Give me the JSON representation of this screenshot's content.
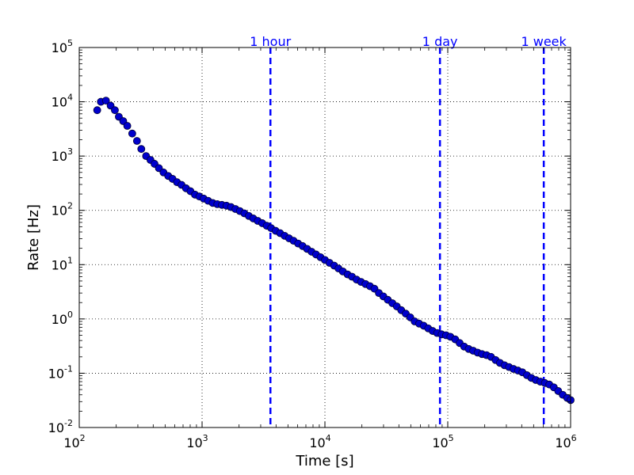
{
  "chart_data": {
    "type": "scatter",
    "title": "",
    "xlabel": "Time [s]",
    "ylabel": "Rate [Hz]",
    "x_scale": "log",
    "y_scale": "log",
    "xlim": [
      100,
      1000000
    ],
    "ylim": [
      0.01,
      100000
    ],
    "grid": true,
    "x_tick_labels": [
      {
        "value": 100,
        "base": "10",
        "exp": "2"
      },
      {
        "value": 1000,
        "base": "10",
        "exp": "3"
      },
      {
        "value": 10000,
        "base": "10",
        "exp": "4"
      },
      {
        "value": 100000,
        "base": "10",
        "exp": "5"
      },
      {
        "value": 1000000,
        "base": "10",
        "exp": "6"
      }
    ],
    "y_tick_labels": [
      {
        "value": 0.01,
        "base": "10",
        "exp": "-2"
      },
      {
        "value": 0.1,
        "base": "10",
        "exp": "-1"
      },
      {
        "value": 1,
        "base": "10",
        "exp": "0"
      },
      {
        "value": 10,
        "base": "10",
        "exp": "1"
      },
      {
        "value": 100,
        "base": "10",
        "exp": "2"
      },
      {
        "value": 1000,
        "base": "10",
        "exp": "3"
      },
      {
        "value": 10000,
        "base": "10",
        "exp": "4"
      },
      {
        "value": 100000,
        "base": "10",
        "exp": "5"
      }
    ],
    "marker_color": "#0000cc",
    "vline_color": "#0000ff",
    "vertical_lines": [
      {
        "x": 3600,
        "label": "1 hour"
      },
      {
        "x": 86400,
        "label": "1 day"
      },
      {
        "x": 604800,
        "label": "1 week"
      }
    ],
    "series": [
      {
        "points": [
          [
            140,
            7000
          ],
          [
            150,
            10000
          ],
          [
            165,
            10500
          ],
          [
            180,
            8500
          ],
          [
            195,
            7000
          ],
          [
            210,
            5300
          ],
          [
            228,
            4400
          ],
          [
            246,
            3600
          ],
          [
            270,
            2600
          ],
          [
            295,
            1900
          ],
          [
            320,
            1350
          ],
          [
            350,
            1000
          ],
          [
            380,
            850
          ],
          [
            410,
            720
          ],
          [
            445,
            600
          ],
          [
            485,
            500
          ],
          [
            530,
            430
          ],
          [
            575,
            380
          ],
          [
            625,
            330
          ],
          [
            680,
            295
          ],
          [
            740,
            255
          ],
          [
            805,
            225
          ],
          [
            875,
            195
          ],
          [
            950,
            180
          ],
          [
            1030,
            165
          ],
          [
            1120,
            150
          ],
          [
            1220,
            137
          ],
          [
            1330,
            130
          ],
          [
            1450,
            126
          ],
          [
            1580,
            122
          ],
          [
            1720,
            115
          ],
          [
            1870,
            106
          ],
          [
            2030,
            97
          ],
          [
            2210,
            88
          ],
          [
            2400,
            79
          ],
          [
            2610,
            71
          ],
          [
            2840,
            64
          ],
          [
            3090,
            58
          ],
          [
            3360,
            52
          ],
          [
            3650,
            47
          ],
          [
            3970,
            42
          ],
          [
            4320,
            38
          ],
          [
            4700,
            34
          ],
          [
            5110,
            30.5
          ],
          [
            5560,
            27.5
          ],
          [
            6050,
            24.5
          ],
          [
            6580,
            22
          ],
          [
            7160,
            19.5
          ],
          [
            7790,
            17.3
          ],
          [
            8470,
            15.4
          ],
          [
            9210,
            13.7
          ],
          [
            10000,
            12.2
          ],
          [
            10900,
            10.8
          ],
          [
            11900,
            9.6
          ],
          [
            12900,
            8.5
          ],
          [
            14000,
            7.5
          ],
          [
            15300,
            6.6
          ],
          [
            16600,
            6.0
          ],
          [
            18100,
            5.3
          ],
          [
            19700,
            4.8
          ],
          [
            21400,
            4.4
          ],
          [
            23300,
            4.0
          ],
          [
            25300,
            3.6
          ],
          [
            27500,
            3.0
          ],
          [
            29900,
            2.6
          ],
          [
            32500,
            2.25
          ],
          [
            35400,
            1.95
          ],
          [
            38500,
            1.7
          ],
          [
            41800,
            1.45
          ],
          [
            45500,
            1.25
          ],
          [
            49500,
            1.07
          ],
          [
            53800,
            0.9
          ],
          [
            58500,
            0.82
          ],
          [
            63700,
            0.75
          ],
          [
            69300,
            0.67
          ],
          [
            75300,
            0.6
          ],
          [
            81900,
            0.55
          ],
          [
            89100,
            0.52
          ],
          [
            96900,
            0.5
          ],
          [
            105000,
            0.47
          ],
          [
            115000,
            0.42
          ],
          [
            125000,
            0.36
          ],
          [
            136000,
            0.31
          ],
          [
            148000,
            0.28
          ],
          [
            161000,
            0.26
          ],
          [
            175000,
            0.24
          ],
          [
            190000,
            0.225
          ],
          [
            207000,
            0.215
          ],
          [
            225000,
            0.2
          ],
          [
            245000,
            0.175
          ],
          [
            266000,
            0.155
          ],
          [
            290000,
            0.14
          ],
          [
            315000,
            0.13
          ],
          [
            343000,
            0.12
          ],
          [
            373000,
            0.112
          ],
          [
            405000,
            0.104
          ],
          [
            441000,
            0.092
          ],
          [
            479000,
            0.082
          ],
          [
            521000,
            0.075
          ],
          [
            567000,
            0.07
          ],
          [
            617000,
            0.066
          ],
          [
            671000,
            0.062
          ],
          [
            730000,
            0.055
          ],
          [
            793000,
            0.047
          ],
          [
            863000,
            0.04
          ],
          [
            939000,
            0.035
          ],
          [
            1000000,
            0.032
          ]
        ]
      }
    ]
  }
}
